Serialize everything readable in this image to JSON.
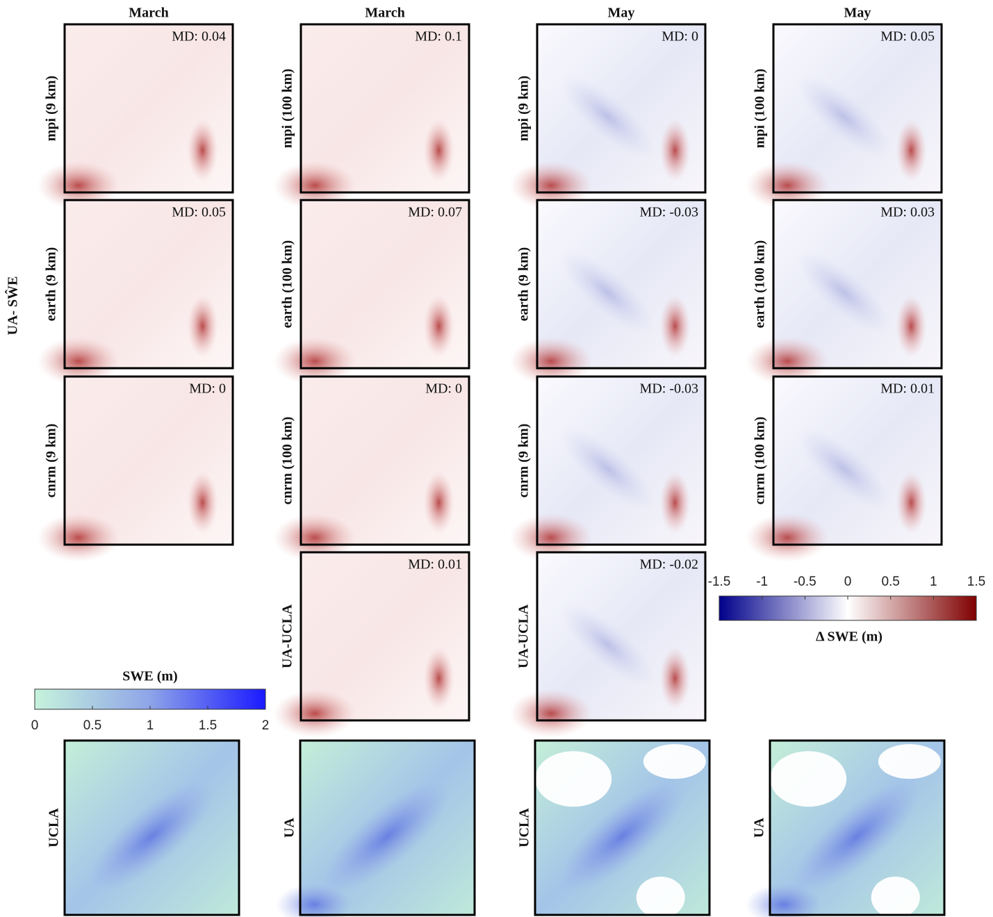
{
  "column_headers": [
    "March",
    "March",
    "May",
    "May"
  ],
  "row_title": "UA- SŴE",
  "difference_panels": [
    {
      "label": "mpi (9 km)",
      "md": "MD: 0.04"
    },
    {
      "label": "mpi (100 km)",
      "md": "MD: 0.1"
    },
    {
      "label": "mpi (9 km)",
      "md": "MD: 0"
    },
    {
      "label": "mpi (100 km)",
      "md": "MD: 0.05"
    },
    {
      "label": "earth (9 km)",
      "md": "MD: 0.05"
    },
    {
      "label": "earth (100 km)",
      "md": "MD: 0.07"
    },
    {
      "label": "earth (9 km)",
      "md": "MD: -0.03"
    },
    {
      "label": "earth (100 km)",
      "md": "MD: 0.03"
    },
    {
      "label": "cnrm (9 km)",
      "md": "MD: 0"
    },
    {
      "label": "cnrm (100 km)",
      "md": "MD: 0"
    },
    {
      "label": "cnrm (9 km)",
      "md": "MD: -0.03"
    },
    {
      "label": "cnrm (100 km)",
      "md": "MD: 0.01"
    },
    {
      "label": "UA-UCLA",
      "md": "MD: 0.01"
    },
    {
      "label": "UA-UCLA",
      "md": "MD: -0.02"
    }
  ],
  "swe_panels": [
    {
      "label": "UCLA"
    },
    {
      "label": "UA"
    },
    {
      "label": "UCLA"
    },
    {
      "label": "UA"
    }
  ],
  "delta_colorbar": {
    "label": "Δ SWE (m)",
    "lim": [
      -1.5,
      1.5
    ],
    "ticks": [
      -1.5,
      -1,
      -0.5,
      0,
      0.5,
      1,
      1.5
    ]
  },
  "swe_colorbar": {
    "label": "SWE (m)",
    "lim": [
      0,
      2
    ],
    "ticks": [
      0,
      0.5,
      1,
      1.5,
      2
    ]
  }
}
